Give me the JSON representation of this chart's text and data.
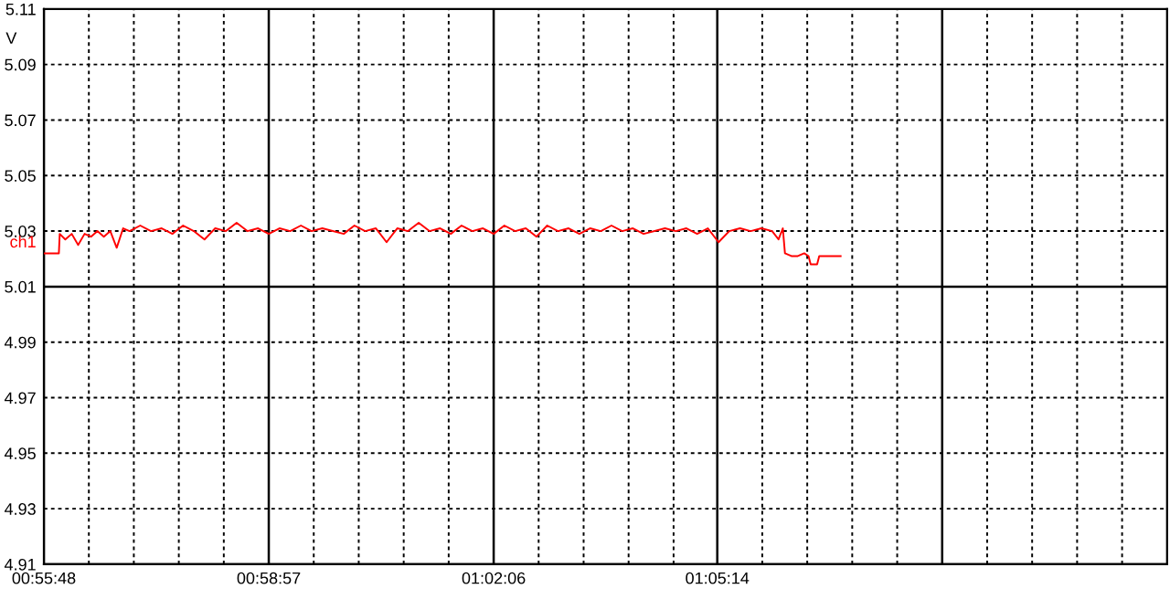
{
  "chart_data": {
    "type": "line",
    "ylabel": "V",
    "xlim": [
      0.93,
      1.1922
    ],
    "ylim": [
      4.91,
      5.11
    ],
    "yticks": [
      4.91,
      4.93,
      4.95,
      4.97,
      4.99,
      5.01,
      5.03,
      5.05,
      5.07,
      5.09,
      5.11
    ],
    "xticks": [
      {
        "value": 0.93,
        "label": "00:55:48"
      },
      {
        "value": 0.9405,
        "label": null
      },
      {
        "value": 0.951,
        "label": null
      },
      {
        "value": 0.9615,
        "label": null
      },
      {
        "value": 0.972,
        "label": null
      },
      {
        "value": 0.9825,
        "label": "00:58:57"
      },
      {
        "value": 0.993,
        "label": null
      },
      {
        "value": 1.0035,
        "label": null
      },
      {
        "value": 1.014,
        "label": null
      },
      {
        "value": 1.0245,
        "label": null
      },
      {
        "value": 1.035,
        "label": "01:02:06"
      },
      {
        "value": 1.0455,
        "label": null
      },
      {
        "value": 1.056,
        "label": null
      },
      {
        "value": 1.0665,
        "label": null
      },
      {
        "value": 1.077,
        "label": null
      },
      {
        "value": 1.0872,
        "label": "01:05:14"
      },
      {
        "value": 1.0977,
        "label": null
      },
      {
        "value": 1.1082,
        "label": null
      },
      {
        "value": 1.1187,
        "label": null
      },
      {
        "value": 1.1292,
        "label": null
      },
      {
        "value": 1.1397,
        "label": null
      },
      {
        "value": 1.1502,
        "label": null
      },
      {
        "value": 1.1607,
        "label": null
      },
      {
        "value": 1.1712,
        "label": null
      },
      {
        "value": 1.1817,
        "label": null
      }
    ],
    "grid": true,
    "line_style": "solid",
    "series": [
      {
        "name": "ch1",
        "color": "#ff0000",
        "x": [
          0.93,
          0.932,
          0.9335,
          0.9337,
          0.935,
          0.9365,
          0.938,
          0.9395,
          0.941,
          0.9425,
          0.944,
          0.9455,
          0.947,
          0.9485,
          0.95,
          0.9525,
          0.955,
          0.9575,
          0.96,
          0.9625,
          0.965,
          0.9675,
          0.97,
          0.9725,
          0.975,
          0.9775,
          0.98,
          0.9825,
          0.985,
          0.9875,
          0.99,
          0.9925,
          0.995,
          1.0,
          1.0025,
          1.005,
          1.0075,
          1.01,
          1.0125,
          1.015,
          1.0175,
          1.02,
          1.0225,
          1.025,
          1.0275,
          1.03,
          1.0325,
          1.035,
          1.0375,
          1.04,
          1.0425,
          1.045,
          1.0475,
          1.05,
          1.0525,
          1.055,
          1.0575,
          1.06,
          1.0625,
          1.065,
          1.0675,
          1.07,
          1.075,
          1.0775,
          1.08,
          1.0825,
          1.085,
          1.0875,
          1.09,
          1.0925,
          1.095,
          1.0975,
          1.1,
          1.1015,
          1.1025,
          1.103,
          1.1045,
          1.106,
          1.1075,
          1.1085,
          1.109,
          1.1105,
          1.111,
          1.1135,
          1.116
        ],
        "values": [
          5.022,
          5.022,
          5.022,
          5.029,
          5.027,
          5.029,
          5.025,
          5.029,
          5.028,
          5.03,
          5.028,
          5.03,
          5.024,
          5.031,
          5.03,
          5.032,
          5.03,
          5.031,
          5.029,
          5.032,
          5.03,
          5.027,
          5.031,
          5.03,
          5.033,
          5.03,
          5.031,
          5.029,
          5.031,
          5.03,
          5.032,
          5.03,
          5.031,
          5.029,
          5.032,
          5.03,
          5.031,
          5.026,
          5.031,
          5.03,
          5.033,
          5.03,
          5.031,
          5.029,
          5.032,
          5.03,
          5.031,
          5.029,
          5.032,
          5.03,
          5.031,
          5.028,
          5.032,
          5.03,
          5.031,
          5.029,
          5.031,
          5.03,
          5.032,
          5.03,
          5.031,
          5.029,
          5.031,
          5.03,
          5.031,
          5.029,
          5.031,
          5.026,
          5.03,
          5.031,
          5.03,
          5.031,
          5.03,
          5.027,
          5.031,
          5.022,
          5.021,
          5.021,
          5.022,
          5.021,
          5.018,
          5.018,
          5.021,
          5.021,
          5.021
        ]
      }
    ]
  }
}
